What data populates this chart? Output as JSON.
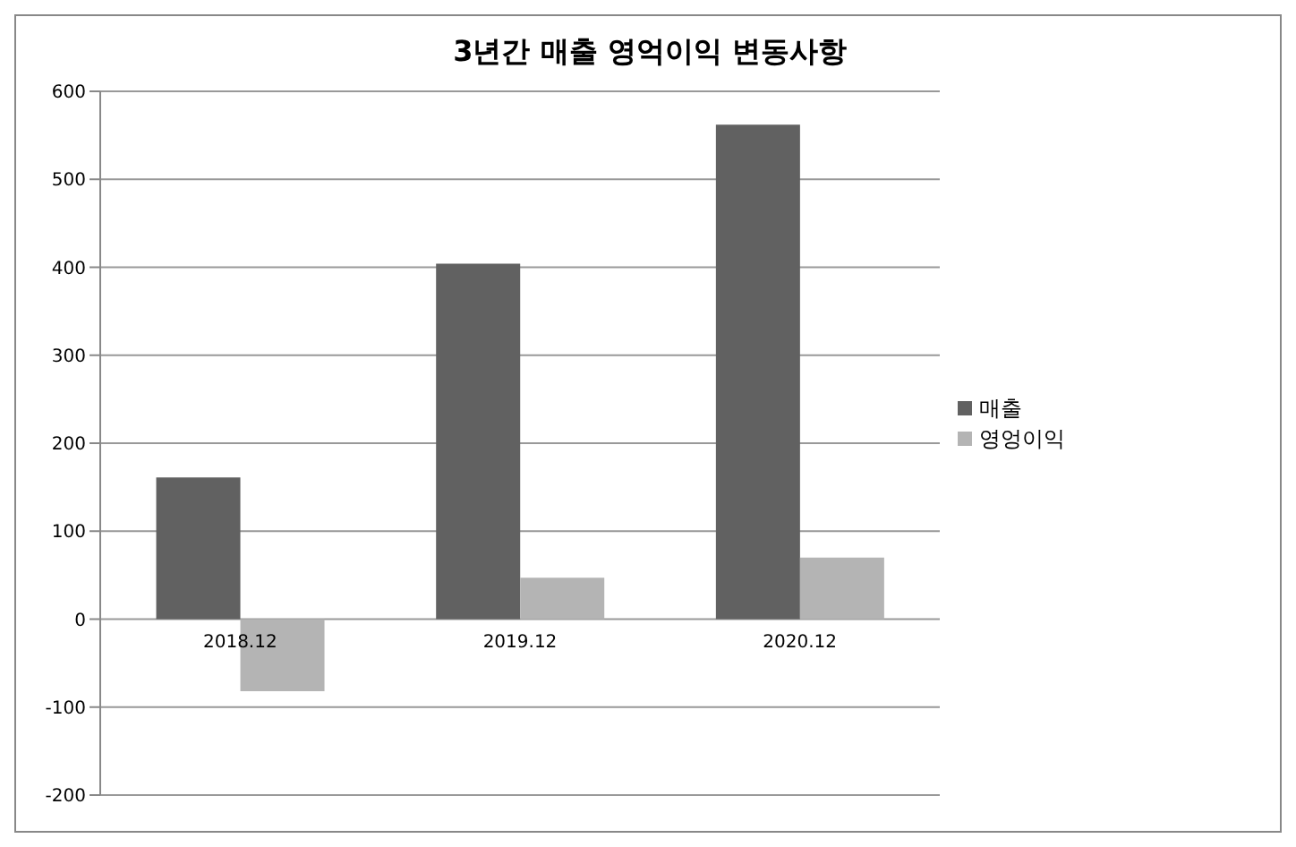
{
  "chart_data": {
    "type": "bar",
    "title": "3년간 매출 영억이익 변동사항",
    "categories": [
      "2018.12",
      "2019.12",
      "2020.12"
    ],
    "series": [
      {
        "name": "매출",
        "color": "#616161",
        "values": [
          161,
          404,
          562
        ]
      },
      {
        "name": "영엉이익",
        "color": "#b4b4b4",
        "values": [
          -82,
          47,
          70
        ]
      }
    ],
    "ylim": [
      -200,
      600
    ],
    "yticks": [
      -200,
      -100,
      0,
      100,
      200,
      300,
      400,
      500,
      600
    ],
    "grid": "y",
    "legend": "right"
  }
}
